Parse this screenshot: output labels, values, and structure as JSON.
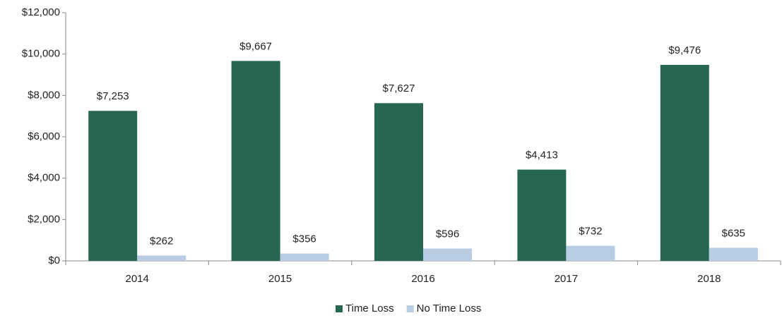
{
  "chart_data": {
    "type": "bar",
    "categories": [
      "2014",
      "2015",
      "2016",
      "2017",
      "2018"
    ],
    "series": [
      {
        "name": "Time Loss",
        "color": "#276650",
        "values": [
          7253,
          9667,
          7627,
          4413,
          9476
        ],
        "value_labels": [
          "$7,253",
          "$9,667",
          "$7,627",
          "$4,413",
          "$9,476"
        ]
      },
      {
        "name": "No Time Loss",
        "color": "#b8cce4",
        "values": [
          262,
          356,
          596,
          732,
          635
        ],
        "value_labels": [
          "$262",
          "$356",
          "$596",
          "$732",
          "$635"
        ]
      }
    ],
    "ylim": [
      0,
      12000
    ],
    "yticks": [
      {
        "value": 0,
        "label": "$0"
      },
      {
        "value": 2000,
        "label": "$2,000"
      },
      {
        "value": 4000,
        "label": "$4,000"
      },
      {
        "value": 6000,
        "label": "$6,000"
      },
      {
        "value": 8000,
        "label": "$8,000"
      },
      {
        "value": 10000,
        "label": "$10,000"
      },
      {
        "value": 12000,
        "label": "$12,000"
      }
    ],
    "grid": false,
    "legend": "bottom"
  }
}
